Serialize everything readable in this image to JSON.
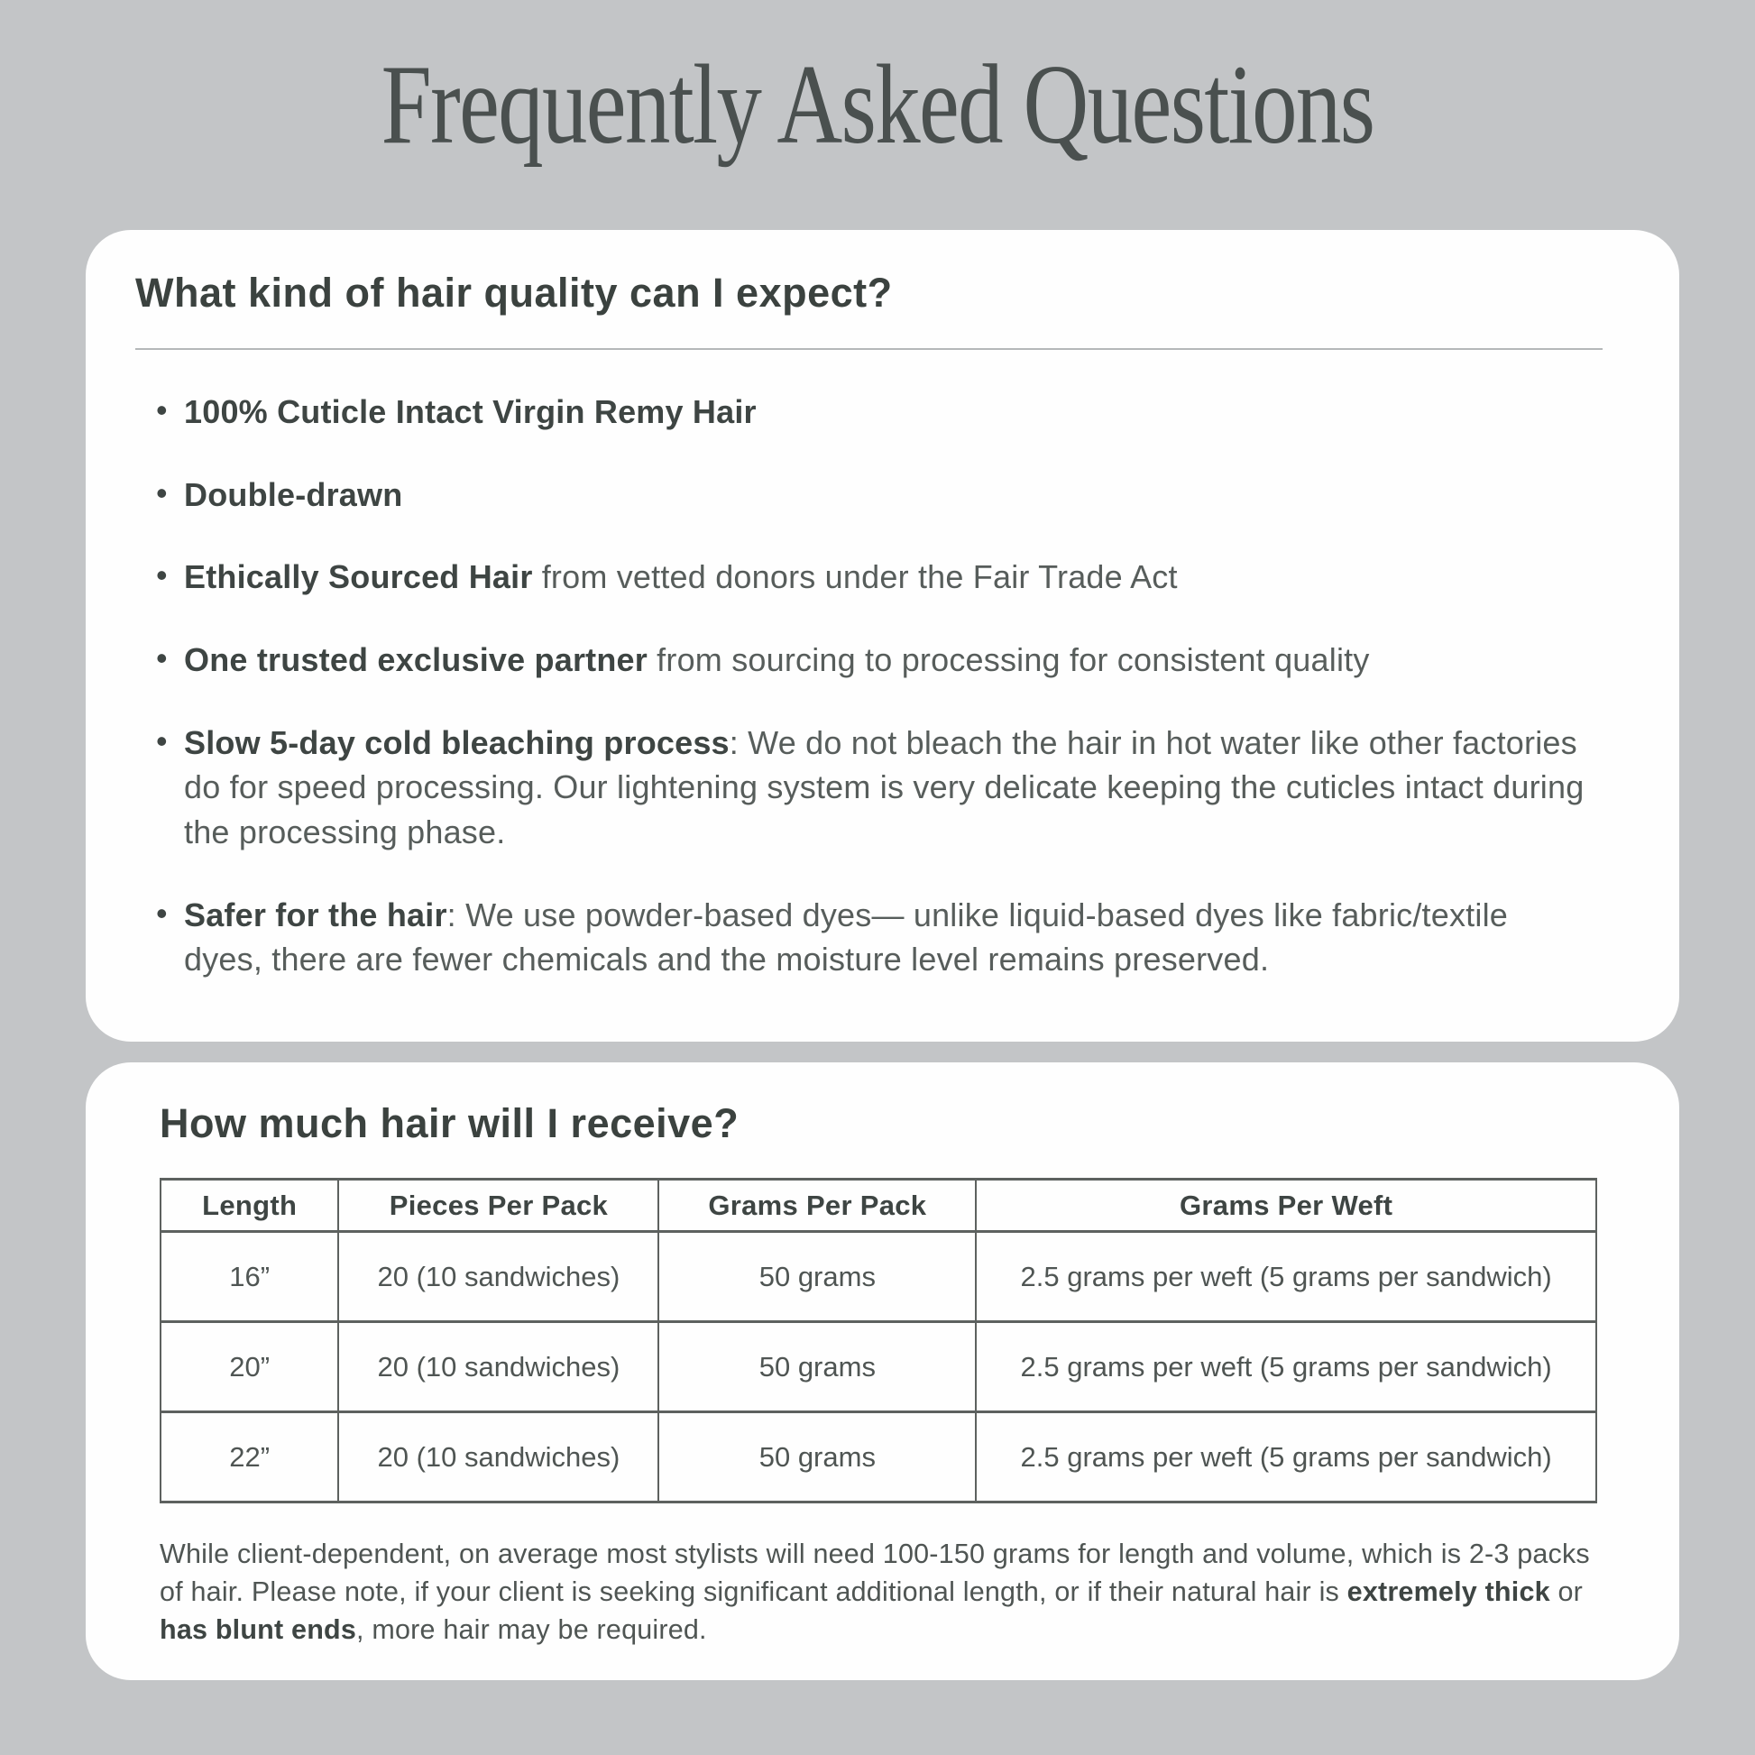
{
  "page": {
    "title": "Frequently Asked Questions"
  },
  "colors": {
    "background": "#c3c5c7",
    "card": "#fefefe",
    "heading_text": "#3b423f",
    "body_text": "#575d5b",
    "table_border": "#5d615f"
  },
  "faq_quality": {
    "question": "What kind of hair quality can I expect?",
    "bullets": [
      {
        "bold": "100% Cuticle Intact Virgin Remy Hair",
        "rest": ""
      },
      {
        "bold": "Double-drawn",
        "rest": ""
      },
      {
        "bold": "Ethically Sourced Hair",
        "rest": " from vetted donors under the Fair Trade Act"
      },
      {
        "bold": "One trusted exclusive partner",
        "rest": " from sourcing to processing for consistent quality"
      },
      {
        "bold": "Slow 5-day cold bleaching process",
        "rest": ": We do not bleach the hair in hot water like other factories do for speed processing. Our lightening system is very delicate keeping the cuticles intact during the processing phase."
      },
      {
        "bold": "Safer for the hair",
        "rest": ": We use powder-based dyes— unlike liquid-based dyes like fabric/textile dyes, there are fewer chemicals and the moisture level remains preserved."
      }
    ]
  },
  "faq_quantity": {
    "question": "How much hair will I receive?",
    "table": {
      "headers": [
        "Length",
        "Pieces Per Pack",
        "Grams Per Pack",
        "Grams Per Weft"
      ],
      "rows": [
        [
          "16”",
          "20 (10 sandwiches)",
          "50 grams",
          "2.5 grams per weft (5 grams per sandwich)"
        ],
        [
          "20”",
          "20 (10 sandwiches)",
          "50 grams",
          "2.5 grams per weft (5 grams per sandwich)"
        ],
        [
          "22”",
          "20 (10 sandwiches)",
          "50 grams",
          "2.5 grams per weft (5 grams per sandwich)"
        ]
      ]
    },
    "note": {
      "part1": "While client-dependent, on average most stylists will need 100-150 grams for length and volume, which is 2-3 packs of hair.  Please note, if your client is seeking significant additional length, or if their natural hair is ",
      "bold1": "extremely thick",
      "part2": " or ",
      "bold2": "has blunt ends",
      "part3": ", more hair may be required."
    }
  }
}
